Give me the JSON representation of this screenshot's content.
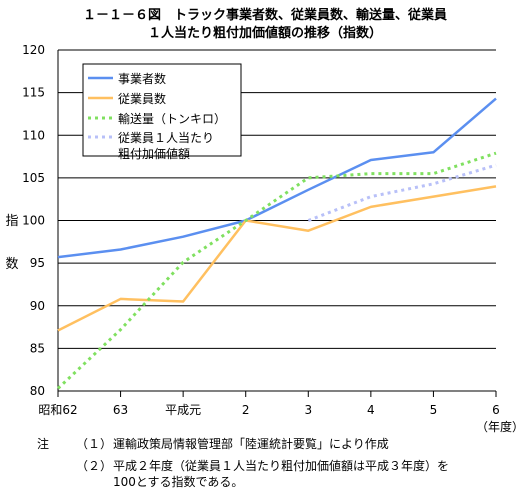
{
  "title": {
    "line1": "１－１－６図　トラック事業者数、従業員数、輸送量、従業員",
    "line2": "１人当たり粗付加価値額の推移（指数）"
  },
  "notes": {
    "label": "注",
    "items": [
      {
        "num": "（１）",
        "text": "運輸政策局情報管理部「陸運統計要覧」により作成"
      },
      {
        "num": "（２）",
        "text": "平成２年度（従業員１人当たり粗付加価値額は平成３年度）を",
        "cont": "100とする指数である。"
      }
    ]
  },
  "chart_data": {
    "type": "line",
    "ylabel": [
      "指",
      "数"
    ],
    "xlabel_unit": "（年度）",
    "categories": [
      "昭和62",
      "63",
      "平成元",
      "2",
      "3",
      "4",
      "5",
      "6"
    ],
    "ylim": [
      80,
      120
    ],
    "yticks": [
      80,
      85,
      90,
      95,
      100,
      105,
      110,
      115,
      120
    ],
    "grid": true,
    "legend_position": "top-left",
    "series": [
      {
        "name": "事業者数",
        "color": "#5b8ff0",
        "style": "solid",
        "values": [
          95.7,
          96.6,
          98.1,
          100.0,
          103.6,
          107.1,
          108.0,
          114.3
        ]
      },
      {
        "name": "従業員数",
        "color": "#ffc060",
        "style": "solid",
        "values": [
          87.1,
          90.8,
          90.5,
          100.0,
          98.8,
          101.6,
          102.8,
          104.0
        ]
      },
      {
        "name": "輸送量（トンキロ）",
        "color": "#80e060",
        "style": "dotted",
        "values": [
          80.3,
          87.2,
          95.1,
          100.0,
          105.0,
          105.5,
          105.5,
          107.9
        ]
      },
      {
        "name": [
          "従業員１人当たり",
          "粗付加価値額"
        ],
        "color": "#b8c0f8",
        "style": "dotted",
        "values": [
          null,
          null,
          null,
          null,
          100.0,
          102.8,
          104.3,
          106.5
        ]
      }
    ]
  }
}
